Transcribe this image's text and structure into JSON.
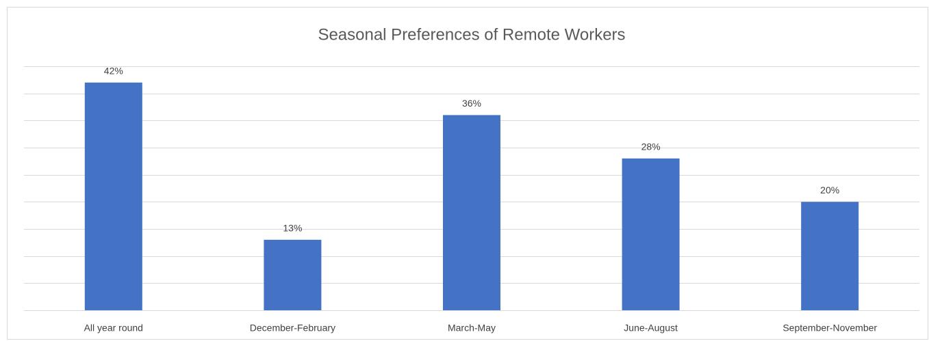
{
  "chart_data": {
    "type": "bar",
    "title": "Seasonal Preferences of Remote Workers",
    "categories": [
      "All year round",
      "December-February",
      "March-May",
      "June-August",
      "September-November"
    ],
    "values": [
      42,
      13,
      36,
      28,
      20
    ],
    "value_labels": [
      "42%",
      "13%",
      "36%",
      "28%",
      "20%"
    ],
    "color": "#4472c4",
    "ylim": [
      0,
      45
    ],
    "yticks": [
      0,
      5,
      10,
      15,
      20,
      25,
      30,
      35,
      40,
      45
    ],
    "grid": true
  }
}
